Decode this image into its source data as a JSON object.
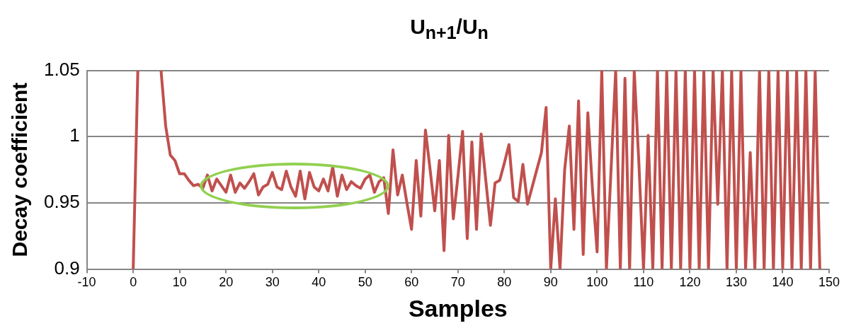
{
  "chart_data": {
    "type": "line",
    "title": "U$_{n+1}$/U$_{n}$",
    "xlabel": "Samples",
    "ylabel": "Decay coefficient",
    "x": [
      0,
      1,
      2,
      3,
      4,
      5,
      6,
      7,
      8,
      9,
      10,
      11,
      12,
      13,
      14,
      15,
      16,
      17,
      18,
      19,
      20,
      21,
      22,
      23,
      24,
      25,
      26,
      27,
      28,
      29,
      30,
      31,
      32,
      33,
      34,
      35,
      36,
      37,
      38,
      39,
      40,
      41,
      42,
      43,
      44,
      45,
      46,
      47,
      48,
      49,
      50,
      51,
      52,
      53,
      54,
      55,
      56,
      57,
      58,
      59,
      60,
      61,
      62,
      63,
      64,
      65,
      66,
      67,
      68,
      69,
      70,
      71,
      72,
      73,
      74,
      75,
      76,
      77,
      78,
      79,
      80,
      81,
      82,
      83,
      84,
      85,
      86,
      87,
      88,
      89,
      90,
      91,
      92,
      93,
      94,
      95,
      96,
      97,
      98,
      99,
      100,
      101,
      102,
      103,
      104,
      105,
      106,
      107,
      108,
      109,
      110,
      111,
      112,
      113,
      114,
      115,
      116,
      117,
      118,
      119,
      120,
      121,
      122,
      123,
      124,
      125,
      126,
      127,
      128,
      129,
      130,
      131,
      132,
      133,
      134,
      135,
      136,
      137,
      138,
      139,
      140,
      141,
      142,
      143,
      144,
      145,
      146,
      147,
      148
    ],
    "series": [
      {
        "color": "#c0504d",
        "values": [
          0.9,
          1.05,
          null,
          null,
          null,
          null,
          1.05,
          1.008,
          0.986,
          0.982,
          0.972,
          0.972,
          0.967,
          0.963,
          0.964,
          0.961,
          0.971,
          0.959,
          0.968,
          0.963,
          0.958,
          0.971,
          0.958,
          0.965,
          0.961,
          0.966,
          0.972,
          0.956,
          0.962,
          0.964,
          0.973,
          0.962,
          0.96,
          0.974,
          0.962,
          0.955,
          0.974,
          0.953,
          0.973,
          0.962,
          0.959,
          0.968,
          0.959,
          0.977,
          0.955,
          0.971,
          0.96,
          0.966,
          0.963,
          0.961,
          0.968,
          0.971,
          0.958,
          0.966,
          0.969,
          0.942,
          0.99,
          0.956,
          0.971,
          0.95,
          0.93,
          0.982,
          0.94,
          1.005,
          0.975,
          0.944,
          0.982,
          0.914,
          1.001,
          0.938,
          0.97,
          1.004,
          0.923,
          0.996,
          0.93,
          1.002,
          0.967,
          0.933,
          0.965,
          0.967,
          0.98,
          0.994,
          0.954,
          0.951,
          0.979,
          0.949,
          0.962,
          0.975,
          0.988,
          1.022,
          0.9,
          0.953,
          0.9,
          0.975,
          1.008,
          0.93,
          1.027,
          0.911,
          1.018,
          0.96,
          0.913,
          1.05,
          0.9,
          0.975,
          1.05,
          0.9,
          1.044,
          0.9,
          1.05,
          0.98,
          0.9,
          1.001,
          0.9,
          1.05,
          0.9,
          1.05,
          0.9,
          1.05,
          0.9,
          1.05,
          0.9,
          1.05,
          0.9,
          1.05,
          0.9,
          1.05,
          0.949,
          1.05,
          0.9,
          1.05,
          0.9,
          1.05,
          0.9,
          0.988,
          0.9,
          1.05,
          0.9,
          1.05,
          0.9,
          1.05,
          0.9,
          1.05,
          0.9,
          1.05,
          0.9,
          1.05,
          0.9,
          1.05,
          0.9
        ]
      }
    ],
    "xlim": [
      -10,
      150
    ],
    "xticks": [
      -10,
      0,
      10,
      20,
      30,
      40,
      50,
      60,
      70,
      80,
      90,
      100,
      110,
      120,
      130,
      140,
      150
    ],
    "ylim": [
      0.9,
      1.05
    ],
    "yticks": [
      0.9,
      0.95,
      1,
      1.05
    ],
    "grid": "y",
    "legend": false,
    "marker": "none",
    "line_style": "solid"
  }
}
